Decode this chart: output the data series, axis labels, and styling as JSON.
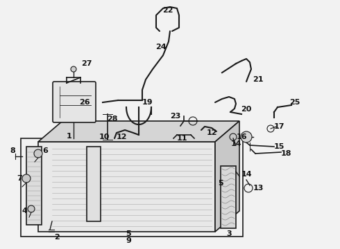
{
  "bg_color": "#f0f0f0",
  "line_color": "#1a1a1a",
  "fig_width": 4.9,
  "fig_height": 3.6,
  "dpi": 100,
  "font_size": 8,
  "font_size_small": 7
}
